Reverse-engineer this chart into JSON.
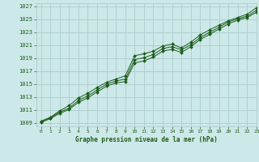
{
  "xlabel": "Graphe pression niveau de la mer (hPa)",
  "bg_color": "#cde8e8",
  "grid_color": "#b0d0d0",
  "line_color": "#1a5c1a",
  "text_color": "#1a5c1a",
  "ylim": [
    1008.5,
    1027.5
  ],
  "xlim": [
    -0.5,
    23
  ],
  "yticks": [
    1009,
    1011,
    1013,
    1015,
    1017,
    1019,
    1021,
    1023,
    1025,
    1027
  ],
  "xticks": [
    0,
    1,
    2,
    3,
    4,
    5,
    6,
    7,
    8,
    9,
    10,
    11,
    12,
    13,
    14,
    15,
    16,
    17,
    18,
    19,
    20,
    21,
    22,
    23
  ],
  "hours": [
    0,
    1,
    2,
    3,
    4,
    5,
    6,
    7,
    8,
    9,
    10,
    11,
    12,
    13,
    14,
    15,
    16,
    17,
    18,
    19,
    20,
    21,
    22,
    23
  ],
  "pressure_main": [
    1009.2,
    1009.8,
    1010.7,
    1011.3,
    1012.5,
    1013.2,
    1014.1,
    1015.0,
    1015.5,
    1015.8,
    1018.8,
    1019.1,
    1019.6,
    1020.5,
    1020.8,
    1020.3,
    1021.1,
    1022.2,
    1023.0,
    1023.8,
    1024.6,
    1025.1,
    1025.5,
    1026.4
  ],
  "pressure_upper": [
    1009.3,
    1009.9,
    1010.9,
    1011.7,
    1012.9,
    1013.6,
    1014.5,
    1015.3,
    1015.8,
    1016.3,
    1019.4,
    1019.7,
    1020.1,
    1020.9,
    1021.2,
    1020.6,
    1021.5,
    1022.6,
    1023.4,
    1024.1,
    1024.8,
    1025.3,
    1025.8,
    1026.8
  ],
  "pressure_lower": [
    1009.1,
    1009.7,
    1010.5,
    1011.1,
    1012.2,
    1012.9,
    1013.8,
    1014.7,
    1015.2,
    1015.4,
    1018.3,
    1018.6,
    1019.2,
    1020.1,
    1020.4,
    1019.9,
    1020.8,
    1021.9,
    1022.7,
    1023.5,
    1024.3,
    1024.9,
    1025.3,
    1026.1
  ]
}
